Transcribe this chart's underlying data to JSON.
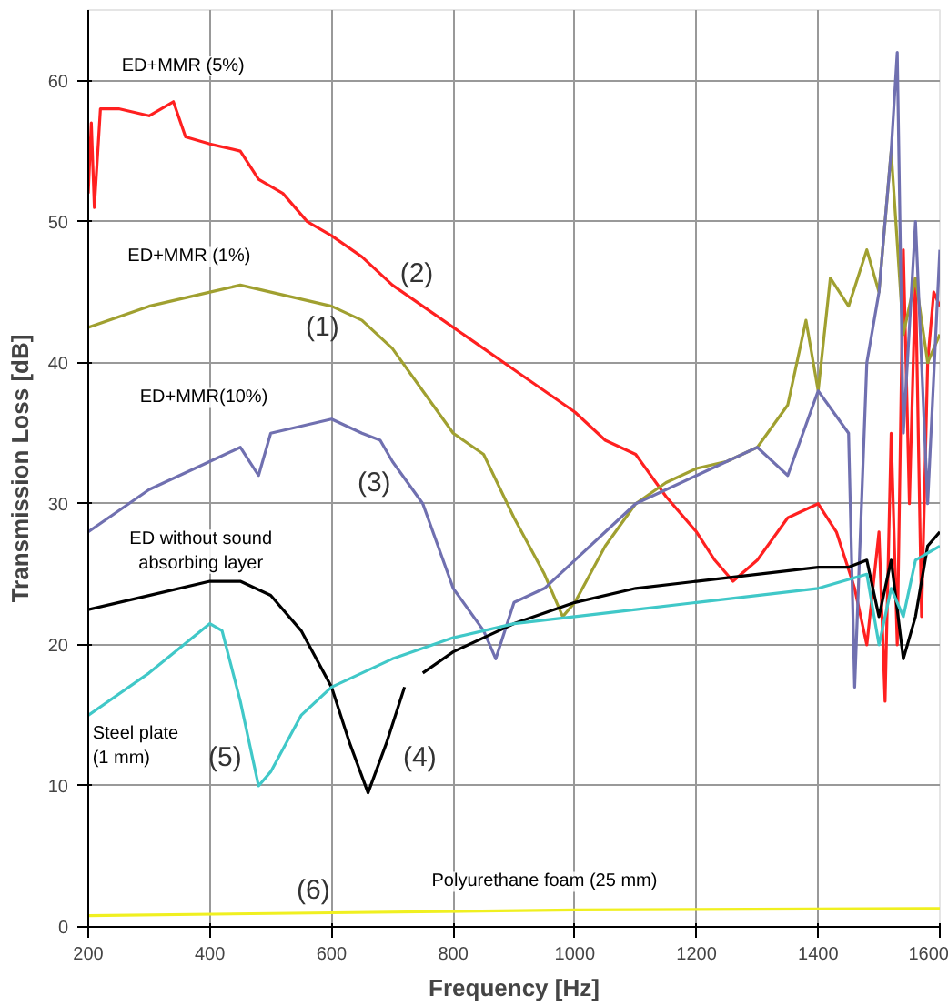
{
  "chart_data": {
    "type": "line",
    "xlabel": "Frequency [Hz]",
    "ylabel": "Transmission Loss [dB]",
    "xlim": [
      200,
      1600
    ],
    "xticks": [
      200,
      400,
      600,
      800,
      1000,
      1200,
      1400,
      1600
    ],
    "ylim": [
      0,
      65
    ],
    "yticks": [
      0,
      10,
      20,
      30,
      40,
      50,
      60
    ],
    "grid": true,
    "legend": false,
    "marker": "none",
    "line_style": "solid",
    "series": [
      {
        "name": "ED+MMR  (5%)",
        "color": "#ff2020",
        "x": [
          200,
          205,
          210,
          220,
          250,
          300,
          340,
          360,
          400,
          450,
          480,
          520,
          560,
          600,
          650,
          700,
          750,
          800,
          850,
          900,
          950,
          1000,
          1050,
          1100,
          1150,
          1200,
          1230,
          1260,
          1300,
          1350,
          1400,
          1430,
          1460,
          1480,
          1500,
          1510,
          1520,
          1530,
          1540,
          1550,
          1560,
          1570,
          1580,
          1590,
          1600
        ],
        "values": [
          52,
          57,
          51,
          58,
          58,
          57.5,
          58.5,
          56,
          55.5,
          55,
          53,
          52,
          50,
          49,
          47.5,
          45.5,
          44,
          42.5,
          41,
          39.5,
          38,
          36.5,
          34.5,
          33.5,
          30.5,
          28,
          26,
          24.5,
          26,
          29,
          30,
          28,
          24,
          20,
          28,
          16,
          35,
          20,
          48,
          30,
          46,
          22,
          40,
          45,
          44
        ]
      },
      {
        "name": "ED+MMR  (1%)",
        "color": "#a0a030",
        "x": [
          200,
          300,
          400,
          450,
          500,
          550,
          600,
          650,
          700,
          750,
          800,
          850,
          900,
          950,
          980,
          1000,
          1050,
          1100,
          1150,
          1200,
          1250,
          1300,
          1350,
          1380,
          1400,
          1420,
          1450,
          1480,
          1500,
          1520,
          1540,
          1560,
          1580,
          1600
        ],
        "values": [
          42.5,
          44,
          45,
          45.5,
          45,
          44.5,
          44,
          43,
          41,
          38,
          35,
          33.5,
          29,
          25,
          22,
          23,
          27,
          30,
          31.5,
          32.5,
          33,
          34,
          37,
          43,
          38,
          46,
          44,
          48,
          45,
          55,
          42,
          46,
          40,
          42
        ]
      },
      {
        "name": "ED+MMR(10%)",
        "color": "#7070b0",
        "x": [
          200,
          250,
          300,
          350,
          400,
          450,
          480,
          500,
          550,
          600,
          650,
          680,
          700,
          750,
          800,
          850,
          870,
          900,
          950,
          1000,
          1050,
          1100,
          1150,
          1200,
          1250,
          1300,
          1350,
          1400,
          1450,
          1460,
          1480,
          1500,
          1520,
          1530,
          1540,
          1560,
          1580,
          1600
        ],
        "values": [
          28,
          29.5,
          31,
          32,
          33,
          34,
          32,
          35,
          35.5,
          36,
          35,
          34.5,
          33,
          30,
          24,
          21,
          19,
          23,
          24,
          26,
          28,
          30,
          31,
          32,
          33,
          34,
          32,
          38,
          35,
          17,
          40,
          45,
          55,
          62,
          35,
          50,
          30,
          48
        ]
      },
      {
        "name": "ED without sound\nabsorbing layer",
        "color": "#000000",
        "x": [
          200,
          300,
          400,
          450,
          500,
          550,
          600,
          630,
          660,
          690,
          720,
          735,
          750,
          800,
          900,
          1000,
          1100,
          1200,
          1300,
          1400,
          1450,
          1480,
          1500,
          1520,
          1540,
          1560,
          1580,
          1600
        ],
        "values": [
          22.5,
          23.5,
          24.5,
          24.5,
          23.5,
          21,
          17,
          13,
          9.5,
          13,
          17,
          null,
          18,
          19.5,
          21.5,
          23,
          24,
          24.5,
          25,
          25.5,
          25.5,
          26,
          22,
          26,
          19,
          22,
          27,
          28
        ]
      },
      {
        "name": "Steel plate\n(1 mm)",
        "color": "#40c8c8",
        "x": [
          200,
          300,
          400,
          420,
          450,
          480,
          500,
          550,
          600,
          700,
          800,
          900,
          1000,
          1100,
          1200,
          1300,
          1400,
          1480,
          1500,
          1520,
          1540,
          1560,
          1600
        ],
        "values": [
          15,
          18,
          21.5,
          21,
          16,
          10,
          11,
          15,
          17,
          19,
          20.5,
          21.5,
          22,
          22.5,
          23,
          23.5,
          24,
          25,
          20,
          24,
          22,
          26,
          27
        ]
      },
      {
        "name": "Polyurethane foam (25 mm)",
        "color": "#f0f020",
        "x": [
          200,
          600,
          1000,
          1600
        ],
        "values": [
          0.8,
          1.0,
          1.2,
          1.3
        ]
      }
    ],
    "annotations": [
      "(1)",
      "(2)",
      "(3)",
      "(4)",
      "(5)",
      "(6)"
    ]
  }
}
